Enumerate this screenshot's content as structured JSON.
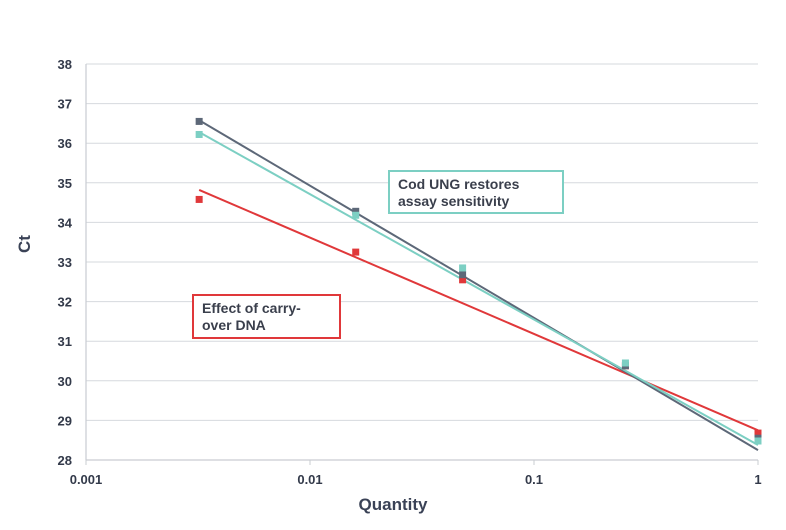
{
  "chart_data": {
    "type": "scatter",
    "xscale": "log",
    "xlabel": "Quantity",
    "ylabel": "Ct",
    "xlim": [
      0.001,
      1
    ],
    "ylim": [
      28,
      38
    ],
    "xticks": [
      {
        "value": 0.001,
        "label": "0.001"
      },
      {
        "value": 0.01,
        "label": "0.01"
      },
      {
        "value": 0.1,
        "label": "0.1"
      },
      {
        "value": 1,
        "label": "1"
      }
    ],
    "yticks": [
      {
        "value": 28,
        "label": "28"
      },
      {
        "value": 29,
        "label": "29"
      },
      {
        "value": 30,
        "label": "30"
      },
      {
        "value": 31,
        "label": "31"
      },
      {
        "value": 32,
        "label": "32"
      },
      {
        "value": 33,
        "label": "33"
      },
      {
        "value": 34,
        "label": "34"
      },
      {
        "value": 35,
        "label": "35"
      },
      {
        "value": 36,
        "label": "36"
      },
      {
        "value": 37,
        "label": "37"
      },
      {
        "value": 38,
        "label": "38"
      }
    ],
    "grid": "horizontal",
    "series": [
      {
        "name": "red",
        "color": "#e0383a",
        "x": [
          0.0032,
          0.016,
          0.048,
          0.256,
          1
        ],
        "y": [
          34.58,
          33.25,
          32.55,
          30.38,
          28.68
        ],
        "trend": {
          "x": [
            0.0032,
            1
          ],
          "y": [
            34.82,
            28.75
          ]
        }
      },
      {
        "name": "dark",
        "color": "#5d6878",
        "x": [
          0.0032,
          0.016,
          0.048,
          0.256,
          1
        ],
        "y": [
          36.55,
          34.28,
          32.68,
          30.38,
          28.55
        ],
        "trend": {
          "x": [
            0.0032,
            1
          ],
          "y": [
            36.58,
            28.25
          ]
        }
      },
      {
        "name": "teal",
        "color": "#7ccfc3",
        "x": [
          0.0032,
          0.016,
          0.048,
          0.256,
          1
        ],
        "y": [
          36.22,
          34.18,
          32.85,
          30.45,
          28.48
        ],
        "trend": {
          "x": [
            0.0032,
            1
          ],
          "y": [
            36.28,
            28.38
          ]
        }
      }
    ],
    "annotations": [
      {
        "text_lines": [
          "Cod UNG restores",
          "assay sensitivity"
        ],
        "border_color": "#7ccfc3"
      },
      {
        "text_lines": [
          "Effect of carry-",
          "over DNA"
        ],
        "border_color": "#e0383a"
      }
    ]
  }
}
